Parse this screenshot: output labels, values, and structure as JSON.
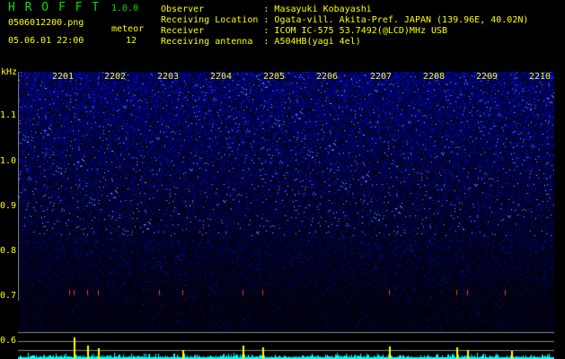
{
  "header": {
    "app_title": "H R O F F T",
    "version": "1.0.0",
    "filename": "0506012200.png",
    "datetime": "05.06.01 22:00",
    "meteor_label": "meteor",
    "meteor_count": "12"
  },
  "info": [
    {
      "label": "Observer",
      "value": "Masayuki Kobayashi"
    },
    {
      "label": "Receiving Location",
      "value": "Ogata-vill. Akita-Pref. JAPAN (139.96E, 40.02N)"
    },
    {
      "label": "Receiver",
      "value": "ICOM IC-575 53.7492(@LCD)MHz USB"
    },
    {
      "label": "Receiving antenna",
      "value": "A504HB(yagi 4el)"
    }
  ],
  "spectrogram": {
    "freq_unit": "kHz",
    "time_labels": [
      "2201",
      "2202",
      "2203",
      "2204",
      "2205",
      "2206",
      "2207",
      "2208",
      "2209",
      "2210"
    ],
    "freq_labels": [
      "1.1",
      "1.0",
      "0.9",
      "0.8",
      "0.7",
      "0.6"
    ],
    "colors": {
      "text": "#ffff00",
      "title": "#00e000",
      "noise": "#2020ff",
      "meteor_bar": "#ffff00",
      "count_bar": "#00ffff"
    }
  }
}
